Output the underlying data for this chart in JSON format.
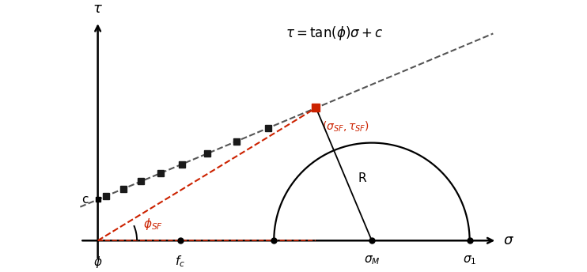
{
  "figsize": [
    7.42,
    3.44
  ],
  "dpi": 100,
  "bg_color": "#ffffff",
  "xlim": [
    -0.5,
    10.5
  ],
  "ylim": [
    -0.6,
    5.8
  ],
  "yaxis_x": 0.0,
  "xaxis_y": 0.0,
  "phi_x": 0.0,
  "c_y": 1.05,
  "fc_x": 2.1,
  "sigma_M_x": 7.0,
  "sigma_1_x": 9.5,
  "R": 2.5,
  "slope": 0.42,
  "scatter_pts_x": [
    0.2,
    0.65,
    1.1,
    1.6,
    2.15,
    2.8,
    3.55,
    4.35
  ],
  "line_dashed_color": "#555555",
  "red_color": "#cc2200",
  "scatter_color": "#1a1a1a",
  "equation_x": 4.8,
  "equation_y": 5.3
}
